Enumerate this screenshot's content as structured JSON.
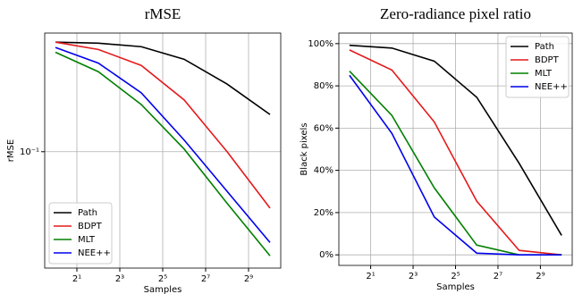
{
  "chart_data": [
    {
      "type": "line",
      "title": "rMSE",
      "xlabel": "Samples",
      "ylabel": "rMSE",
      "x": [
        1,
        4,
        16,
        64,
        256,
        1024
      ],
      "xscale": "log",
      "yscale": "log",
      "grid": true,
      "legend": "lower left",
      "xlim": [
        0.7071,
        1448.15
      ],
      "ylim": [
        0.027,
        0.38
      ],
      "xticks": [
        {
          "value": 2,
          "label": "2¹"
        },
        {
          "value": 8,
          "label": "2³"
        },
        {
          "value": 32,
          "label": "2⁵"
        },
        {
          "value": 128,
          "label": "2⁷"
        },
        {
          "value": 512,
          "label": "2⁹"
        }
      ],
      "yticks": [
        {
          "value": 0.1,
          "label": "10⁻¹"
        }
      ],
      "series": [
        {
          "name": "Path",
          "color": "#000000",
          "values": [
            0.343,
            0.339,
            0.326,
            0.283,
            0.214,
            0.152
          ]
        },
        {
          "name": "BDPT",
          "color": "#e41a1c",
          "values": [
            0.343,
            0.316,
            0.264,
            0.179,
            0.1,
            0.053
          ]
        },
        {
          "name": "MLT",
          "color": "#008000",
          "values": [
            0.306,
            0.246,
            0.17,
            0.103,
            0.056,
            0.031
          ]
        },
        {
          "name": "NEE++",
          "color": "#0000ee",
          "values": [
            0.323,
            0.271,
            0.194,
            0.114,
            0.064,
            0.036
          ]
        }
      ]
    },
    {
      "type": "line",
      "title": "Zero-radiance pixel ratio",
      "xlabel": "Samples",
      "ylabel": "Black pixels",
      "x": [
        1,
        4,
        16,
        64,
        256,
        1024
      ],
      "xscale": "log",
      "yscale": "linear",
      "grid": true,
      "legend": "upper right",
      "xlim": [
        0.7071,
        1448.15
      ],
      "ylim": [
        -5,
        105
      ],
      "xticks": [
        {
          "value": 2,
          "label": "2¹"
        },
        {
          "value": 8,
          "label": "2³"
        },
        {
          "value": 32,
          "label": "2⁵"
        },
        {
          "value": 128,
          "label": "2⁷"
        },
        {
          "value": 512,
          "label": "2⁹"
        }
      ],
      "yticks": [
        {
          "value": 0,
          "label": "0%"
        },
        {
          "value": 20,
          "label": "20%"
        },
        {
          "value": 40,
          "label": "40%"
        },
        {
          "value": 60,
          "label": "60%"
        },
        {
          "value": 80,
          "label": "80%"
        },
        {
          "value": 100,
          "label": "100%"
        }
      ],
      "series": [
        {
          "name": "Path",
          "color": "#000000",
          "values": [
            99.2,
            97.9,
            91.7,
            74.6,
            43.3,
            9.2
          ]
        },
        {
          "name": "BDPT",
          "color": "#e41a1c",
          "values": [
            97,
            87.5,
            62.9,
            25.4,
            2.1,
            0
          ]
        },
        {
          "name": "MLT",
          "color": "#008000",
          "values": [
            87,
            66,
            31.7,
            4.6,
            0,
            0
          ]
        },
        {
          "name": "NEE++",
          "color": "#0000ee",
          "values": [
            85,
            57.5,
            17.9,
            0.8,
            0,
            0
          ]
        }
      ]
    }
  ]
}
